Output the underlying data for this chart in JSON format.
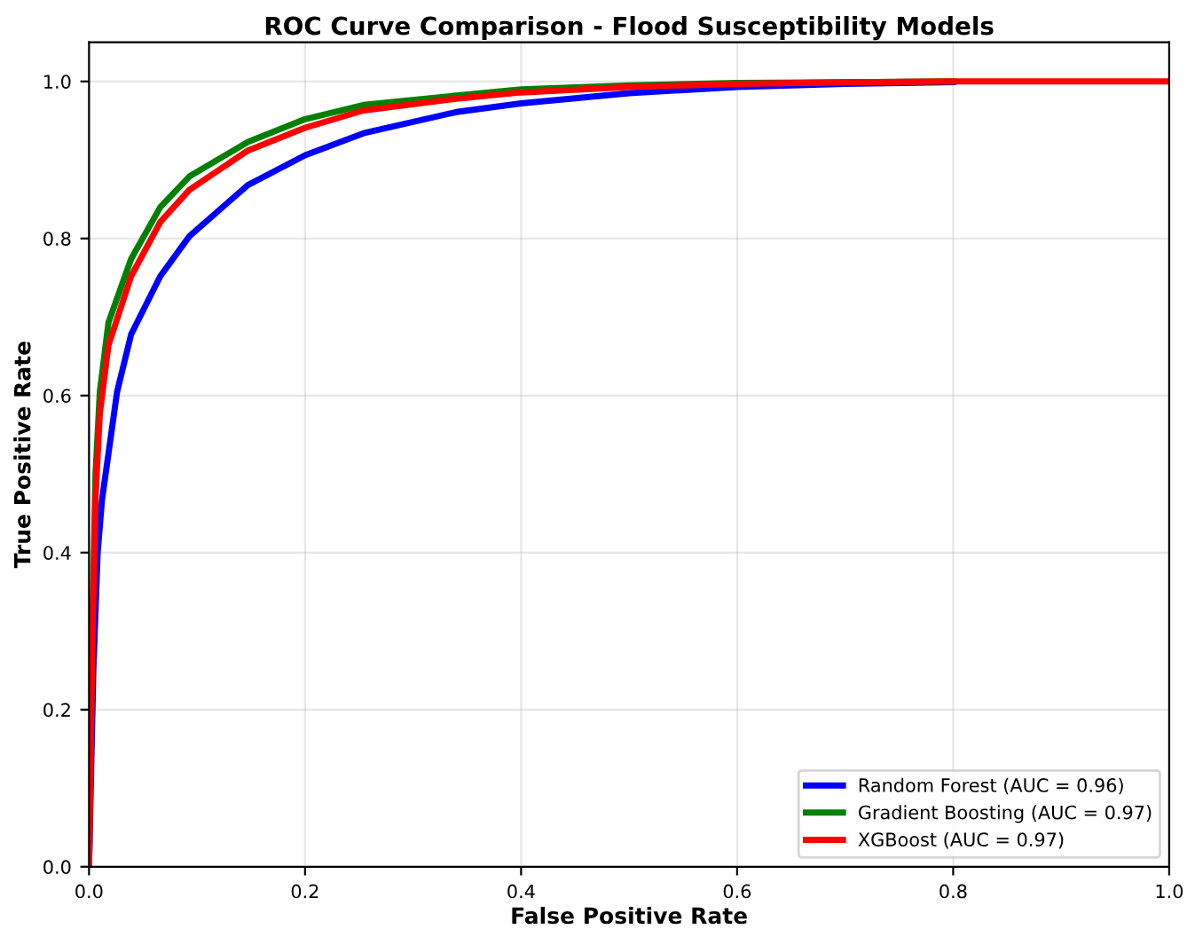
{
  "chart_data": {
    "type": "line",
    "title": "ROC Curve Comparison - Flood Susceptibility Models",
    "xlabel": "False Positive Rate",
    "ylabel": "True Positive Rate",
    "xlim": [
      0,
      1
    ],
    "ylim": [
      0,
      1.05
    ],
    "xticks": [
      {
        "value": 0,
        "label": "0.0"
      },
      0.2,
      0.4,
      0.6,
      0.8,
      {
        "value": 1,
        "label": "1.0"
      }
    ],
    "yticks": [
      {
        "value": 0,
        "label": "0.0"
      },
      0.2,
      0.4,
      0.6,
      0.8,
      {
        "value": 1,
        "label": "1.0"
      }
    ],
    "grid": true,
    "legend": "bottom right",
    "marker": "none",
    "line_style": "solid",
    "series": [
      {
        "name": "Random Forest (AUC = 0.96)",
        "color": "#0000ff",
        "x": [
          0,
          0.004,
          0.008,
          0.012,
          0.026,
          0.039,
          0.066,
          0.093,
          0.147,
          0.2,
          0.254,
          0.34,
          0.4,
          0.5,
          0.6,
          0.7,
          0.8
        ],
        "values": [
          0,
          0.25,
          0.4,
          0.467,
          0.605,
          0.678,
          0.752,
          0.803,
          0.868,
          0.906,
          0.934,
          0.961,
          0.972,
          0.985,
          0.993,
          0.997,
          0.999
        ]
      },
      {
        "name": "Gradient Boosting (AUC = 0.97)",
        "color": "#008000",
        "x": [
          0,
          0.003,
          0.006,
          0.01,
          0.018,
          0.039,
          0.066,
          0.093,
          0.147,
          0.2,
          0.254,
          0.34,
          0.4,
          0.5,
          0.6,
          0.7,
          0.8
        ],
        "values": [
          0,
          0.3,
          0.5,
          0.605,
          0.693,
          0.774,
          0.84,
          0.879,
          0.923,
          0.952,
          0.97,
          0.982,
          0.99,
          0.995,
          0.998,
          0.999,
          1.0
        ]
      },
      {
        "name": "XGBoost (AUC = 0.97)",
        "color": "#ff0000",
        "x": [
          0,
          0.003,
          0.006,
          0.01,
          0.018,
          0.039,
          0.066,
          0.093,
          0.147,
          0.2,
          0.254,
          0.34,
          0.4,
          0.5,
          0.6,
          0.7,
          0.8,
          0.9,
          1.0
        ],
        "values": [
          0,
          0.28,
          0.47,
          0.577,
          0.664,
          0.752,
          0.821,
          0.862,
          0.912,
          0.941,
          0.963,
          0.978,
          0.986,
          0.993,
          0.997,
          0.999,
          1.0,
          1.0,
          1.0
        ]
      }
    ]
  }
}
